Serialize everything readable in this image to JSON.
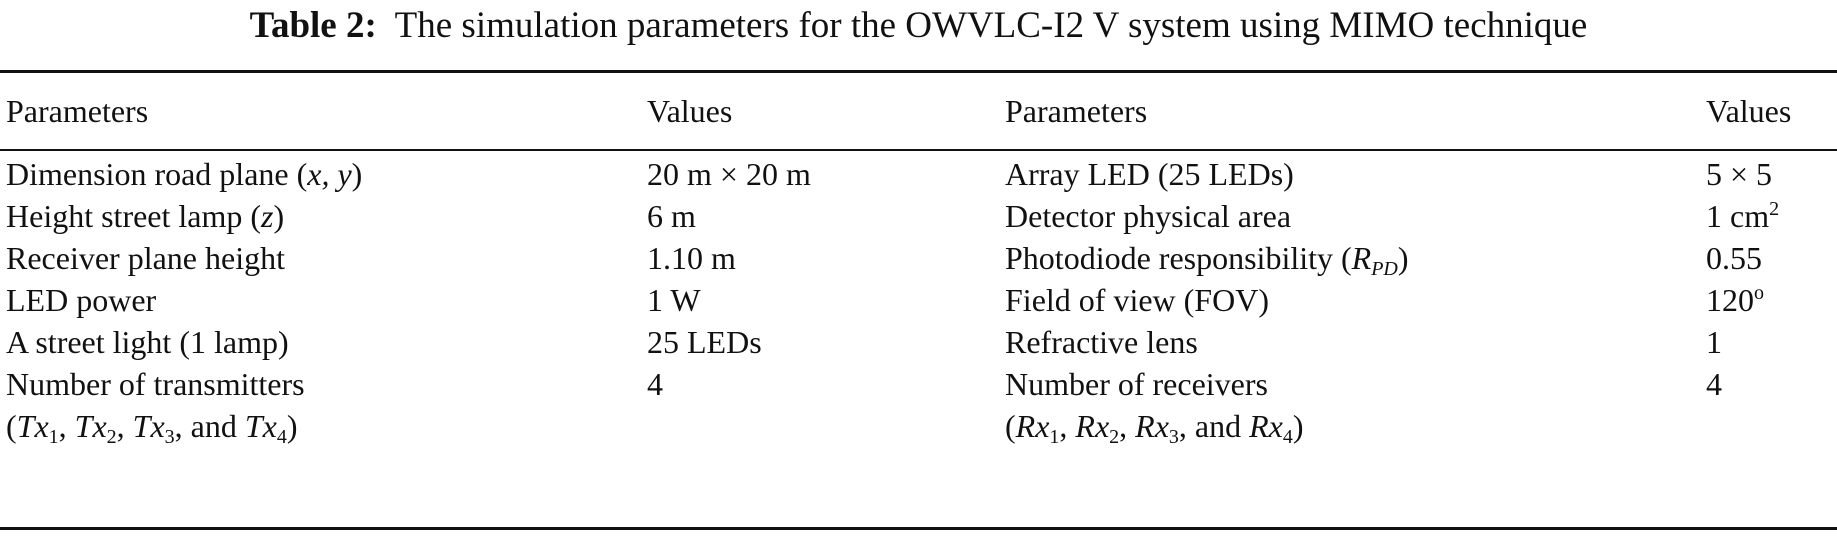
{
  "caption": {
    "label": "Table 2:",
    "text": "The simulation parameters for the OWVLC-I2 V system using MIMO technique"
  },
  "columns": [
    "Parameters",
    "Values",
    "Parameters",
    "Values"
  ],
  "rows": [
    {
      "p1": "Dimension road plane (",
      "p1_var": "x, y",
      "p1_end": ")",
      "v1": "20 m × 20 m",
      "p2": "Array LED (25 LEDs)",
      "v2": "5 × 5"
    },
    {
      "p1": "Height street lamp (",
      "p1_var": "z",
      "p1_end": ")",
      "v1": "6 m",
      "p2": "Detector physical area",
      "v2": "1 cm",
      "v2_sup": "2"
    },
    {
      "p1": "Receiver plane height",
      "v1": "1.10 m",
      "p2": "Photodiode responsibility (",
      "p2_var": "R",
      "p2_sub": "PD",
      "p2_end": ")",
      "v2": "0.55"
    },
    {
      "p1": "LED power",
      "v1": "1 W",
      "p2": "Field of view (FOV)",
      "v2": "120",
      "v2_sup": "o"
    },
    {
      "p1": "A street light (1 lamp)",
      "v1": "25 LEDs",
      "p2": "Refractive lens",
      "v2": "1"
    },
    {
      "p1": "Number of transmitters",
      "v1": "4",
      "p2": "Number of receivers",
      "v2": "4"
    }
  ],
  "continuation": {
    "tx": {
      "open": "(",
      "items": [
        "Tx",
        "Tx",
        "Tx",
        "Tx"
      ],
      "subs": [
        "1",
        "2",
        "3",
        "4"
      ],
      "sep": ", ",
      "and": ", and ",
      "close": ")"
    },
    "rx": {
      "items": [
        "Rx",
        "Rx",
        "Rx",
        "Rx"
      ],
      "subs": [
        "1",
        "2",
        "3",
        "4"
      ]
    }
  }
}
